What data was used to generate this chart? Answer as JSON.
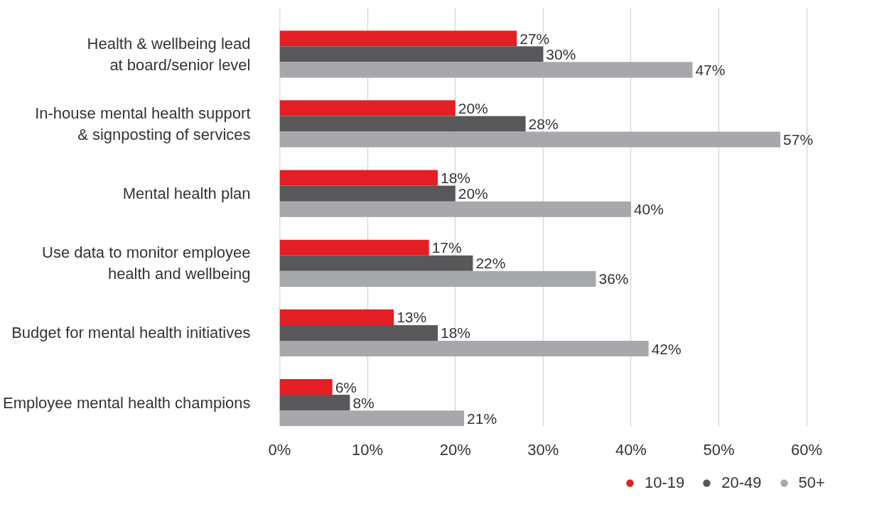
{
  "chart_data": {
    "type": "bar",
    "orientation": "horizontal",
    "categories": [
      "Health & wellbeing lead at board/senior level",
      "In-house mental health support & signposting of services",
      "Mental health plan",
      "Use data to monitor employee health and wellbeing",
      "Budget for mental health initiatives",
      "Employee mental health champions"
    ],
    "series": [
      {
        "name": "10-19",
        "color": "#e31e24",
        "values": [
          27,
          20,
          18,
          17,
          13,
          6
        ],
        "value_labels": [
          "27%",
          "20%",
          "18%",
          "17%",
          "13%",
          "6%"
        ]
      },
      {
        "name": "20-49",
        "color": "#58585a",
        "values": [
          30,
          28,
          20,
          22,
          18,
          8
        ],
        "value_labels": [
          "30%",
          "28%",
          "20%",
          "22%",
          "18%",
          "8%"
        ]
      },
      {
        "name": "50+",
        "color": "#a7a8ab",
        "values": [
          47,
          57,
          40,
          36,
          42,
          21
        ],
        "value_labels": [
          "47%",
          "57%",
          "40%",
          "36%",
          "42%",
          "21%"
        ]
      }
    ],
    "xlim": [
      0,
      60
    ],
    "xticks": [
      {
        "value": 0,
        "label": "0%"
      },
      {
        "value": 10,
        "label": "10%"
      },
      {
        "value": 20,
        "label": "20%"
      },
      {
        "value": 30,
        "label": "30%"
      },
      {
        "value": 40,
        "label": "40%"
      },
      {
        "value": 50,
        "label": "50%"
      },
      {
        "value": 60,
        "label": "60%"
      }
    ],
    "grid": "x",
    "legend": "bottom",
    "marker": "circle"
  }
}
